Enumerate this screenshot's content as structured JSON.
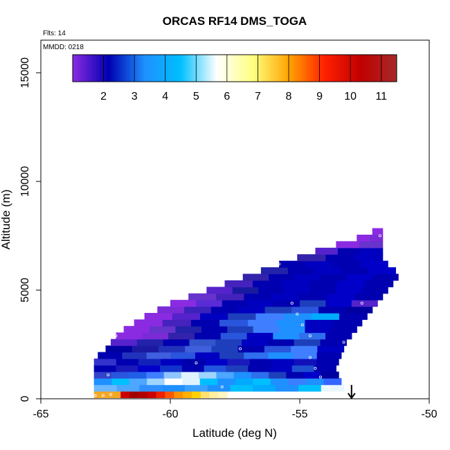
{
  "chart_data": {
    "type": "heatmap",
    "title": "ORCAS RF14 DMS_TOGA",
    "flights_label": "Flts: 14",
    "date_label": "MMDD: 0218",
    "xlabel": "Latitude (deg N)",
    "ylabel": "Altitude (m)",
    "xlim": [
      -65,
      -50
    ],
    "ylim": [
      0,
      16500
    ],
    "x_ticks": [
      -65,
      -60,
      -55,
      -50
    ],
    "x_tick_labels": [
      "-65",
      "-60",
      "-55",
      "-50"
    ],
    "y_ticks": [
      0,
      5000,
      10000,
      15000
    ],
    "y_tick_labels": [
      "0",
      "5000",
      "10000",
      "15000"
    ],
    "colorbar": {
      "range": [
        1,
        11.5
      ],
      "ticks": [
        2,
        3,
        4,
        5,
        6,
        7,
        8,
        9,
        10,
        11
      ],
      "tick_labels": [
        "2",
        "3",
        "4",
        "5",
        "6",
        "7",
        "8",
        "9",
        "10",
        "11"
      ],
      "colors": [
        "#8a2be2",
        "#0000b0",
        "#1e90ff",
        "#00bfff",
        "#ffffff",
        "#ffff80",
        "#ffa500",
        "#ff2000",
        "#c00000",
        "#a52a2a"
      ]
    },
    "arrow_latitude": -53.0,
    "rows": [
      {
        "alt": 200,
        "from": -62.95,
        "to": -57.8,
        "colors": [
          "#f5a623",
          "#f5a623",
          "#f5a623",
          "#cc0000",
          "#a00000",
          "#b00000",
          "#cc0000",
          "#ee2000",
          "#ff5500",
          "#ff9000",
          "#ffb000",
          "#ffd000",
          "#ffe070",
          "#fff0a0",
          "#fff5c0"
        ]
      },
      {
        "alt": 500,
        "from": -62.95,
        "to": -53.3,
        "colors": [
          "#6bb8ff",
          "#4da6ff",
          "#2f8fff",
          "#1e90ff",
          "#3aa0ff",
          "#1e90ff",
          "#00bfff",
          "#00aaff",
          "#1e90ff",
          "#00bfff",
          "#e8f7ff"
        ]
      },
      {
        "alt": 800,
        "from": -62.95,
        "to": -53.4,
        "colors": [
          "#1e90ff",
          "#00bfff",
          "#4da6ff",
          "#9fd4ff",
          "#ffffff",
          "#dff3ff",
          "#00bfff",
          "#1e90ff",
          "#00aaff",
          "#00bfff",
          "#1e90ff",
          "#3a7fff",
          "#1e90ff",
          "#3366ff"
        ]
      },
      {
        "alt": 1100,
        "from": -62.95,
        "to": -53.5,
        "colors": [
          "#3344cc",
          "#2a55dd",
          "#1f5fe8",
          "#3f7fff",
          "#8fc4ff",
          "#e0f2ff",
          "#9fd4ff",
          "#4da6ff",
          "#1e90ff",
          "#2f6fee",
          "#1e3fbb",
          "#0000b0",
          "#0000c8",
          "#0000a0"
        ]
      },
      {
        "alt": 1400,
        "from": -62.95,
        "to": -53.6,
        "colors": [
          "#0000b0",
          "#1a1abb",
          "#0000c8",
          "#1133cc",
          "#0000b0",
          "#2255dd",
          "#1e3fbb",
          "#0000b0",
          "#0000c0",
          "#1e4fd0",
          "#0000b0"
        ]
      },
      {
        "alt": 1700,
        "from": -62.95,
        "to": -53.5,
        "colors": [
          "#3333cc",
          "#0000b0",
          "#1122bb",
          "#0000c0",
          "#0000aa",
          "#0000c8",
          "#1a1abb",
          "#0000b0",
          "#0000c0",
          "#1111bb",
          "#0000b0"
        ]
      },
      {
        "alt": 2000,
        "from": -62.8,
        "to": -53.4,
        "colors": [
          "#0000b0",
          "#2233bb",
          "#3f5fdd",
          "#2a55dd",
          "#0000c0",
          "#1e3fbb",
          "#2f6fee",
          "#1e90ff",
          "#3f7fff",
          "#0000b0"
        ]
      },
      {
        "alt": 2300,
        "from": -62.5,
        "to": -53.3,
        "colors": [
          "#0000a0",
          "#1a1aa0",
          "#2233bb",
          "#3f5fdd",
          "#1e3fbb",
          "#0000b0",
          "#2a55dd",
          "#3f7fff",
          "#0000c0"
        ]
      },
      {
        "alt": 2600,
        "from": -62.3,
        "to": -53.2,
        "colors": [
          "#5522cc",
          "#2222aa",
          "#0000b0",
          "#3355cc",
          "#1e3fbb",
          "#0000c0",
          "#0000b0",
          "#1e3fbb",
          "#0000b0"
        ]
      },
      {
        "alt": 2900,
        "from": -62.1,
        "to": -53.0,
        "colors": [
          "#8a2be2",
          "#7a2bd6",
          "#3322aa",
          "#0000b0",
          "#2a55dd",
          "#0000c0",
          "#1e90ff",
          "#2f6fee",
          "#0000b0"
        ]
      },
      {
        "alt": 3200,
        "from": -61.8,
        "to": -52.8,
        "colors": [
          "#8a2be2",
          "#6633cc",
          "#2222aa",
          "#0000b0",
          "#1e3fbb",
          "#3f7fff",
          "#1e90ff",
          "#0000c0",
          "#0000b0"
        ]
      },
      {
        "alt": 3500,
        "from": -61.4,
        "to": -52.6,
        "colors": [
          "#8a2be2",
          "#4422bb",
          "#0000b0",
          "#2a55dd",
          "#3f7fff",
          "#1e90ff",
          "#0000c0",
          "#0000b0"
        ]
      },
      {
        "alt": 3800,
        "from": -61.0,
        "to": -52.4,
        "colors": [
          "#8a2be2",
          "#5522cc",
          "#0000c0",
          "#1e3fbb",
          "#3f7fff",
          "#1e90ff",
          "#00aaff",
          "#0000b0"
        ]
      },
      {
        "alt": 4100,
        "from": -60.5,
        "to": -52.2,
        "colors": [
          "#7a2bd6",
          "#3a22bb",
          "#0000b0",
          "#0000c0",
          "#1e3fbb",
          "#2a55dd",
          "#0000b0",
          "#0000a0"
        ]
      },
      {
        "alt": 4400,
        "from": -60.0,
        "to": -52.0,
        "colors": [
          "#8a2be2",
          "#5a2bd6",
          "#0000b0",
          "#0000c0",
          "#0000b0",
          "#1e3fbb",
          "#0000c8",
          "#5522cc"
        ]
      },
      {
        "alt": 4700,
        "from": -59.3,
        "to": -51.8,
        "colors": [
          "#6633cc",
          "#4422bb",
          "#0000b0",
          "#0000c0",
          "#0000b0",
          "#0000c8",
          "#0000b0"
        ]
      },
      {
        "alt": 5000,
        "from": -58.6,
        "to": -51.6,
        "colors": [
          "#5522cc",
          "#1a1aa0",
          "#0000b0",
          "#0000c0",
          "#0000b0",
          "#0000c8",
          "#0000b0"
        ]
      },
      {
        "alt": 5300,
        "from": -57.9,
        "to": -51.4,
        "colors": [
          "#4422bb",
          "#0000b0",
          "#0000c0",
          "#0000b0",
          "#0000c8",
          "#0000b0"
        ]
      },
      {
        "alt": 5600,
        "from": -57.2,
        "to": -51.2,
        "colors": [
          "#3322aa",
          "#0000b0",
          "#0000c0",
          "#0000b0",
          "#0000c8",
          "#0000b0"
        ]
      },
      {
        "alt": 5900,
        "from": -56.5,
        "to": -51.3,
        "colors": [
          "#2222aa",
          "#0000b0",
          "#0000c0",
          "#0000b0",
          "#0000c8"
        ]
      },
      {
        "alt": 6200,
        "from": -55.8,
        "to": -51.6,
        "colors": [
          "#0000b0",
          "#0000c0",
          "#0000b0",
          "#0000c8"
        ]
      },
      {
        "alt": 6500,
        "from": -55.1,
        "to": -51.8,
        "colors": [
          "#3322aa",
          "#0000b0",
          "#0000c0"
        ]
      },
      {
        "alt": 6800,
        "from": -54.4,
        "to": -51.8,
        "colors": [
          "#5522cc",
          "#0000b0",
          "#0000c0"
        ]
      },
      {
        "alt": 7100,
        "from": -53.6,
        "to": -51.8,
        "colors": [
          "#8a2be2",
          "#6633cc"
        ]
      },
      {
        "alt": 7400,
        "from": -52.8,
        "to": -51.8,
        "colors": [
          "#8a2be2",
          "#7a2bd6"
        ]
      },
      {
        "alt": 7700,
        "from": -52.2,
        "to": -51.8,
        "colors": [
          "#8a2be2"
        ]
      }
    ],
    "samples": [
      {
        "lat": -62.9,
        "alt": 150
      },
      {
        "lat": -62.6,
        "alt": 150
      },
      {
        "lat": -62.3,
        "alt": 200
      },
      {
        "lat": -62.4,
        "alt": 1100
      },
      {
        "lat": -63.0,
        "alt": 1650
      },
      {
        "lat": -58.0,
        "alt": 550
      },
      {
        "lat": -59.0,
        "alt": 1650
      },
      {
        "lat": -57.3,
        "alt": 2300
      },
      {
        "lat": -62.1,
        "alt": 2900
      },
      {
        "lat": -54.6,
        "alt": 1900
      },
      {
        "lat": -54.4,
        "alt": 1400
      },
      {
        "lat": -54.2,
        "alt": 1000
      },
      {
        "lat": -53.9,
        "alt": 550
      },
      {
        "lat": -53.3,
        "alt": 2600
      },
      {
        "lat": -54.6,
        "alt": 2900
      },
      {
        "lat": -54.9,
        "alt": 3400
      },
      {
        "lat": -55.1,
        "alt": 3900
      },
      {
        "lat": -55.3,
        "alt": 4400
      },
      {
        "lat": -52.6,
        "alt": 4400
      },
      {
        "lat": -55.8,
        "alt": 6200
      },
      {
        "lat": -51.1,
        "alt": 5700
      },
      {
        "lat": -51.9,
        "alt": 7500
      }
    ]
  }
}
